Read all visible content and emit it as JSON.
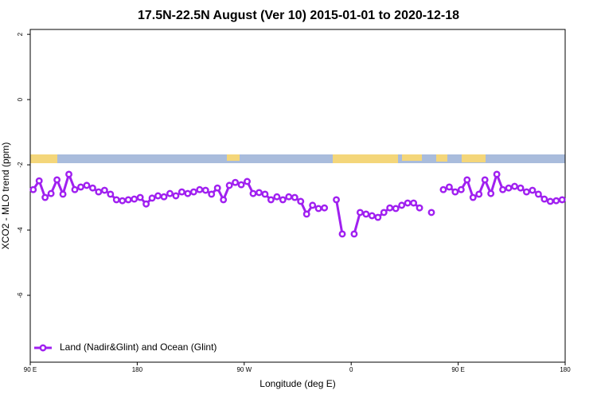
{
  "chart_data": {
    "type": "line",
    "title": "17.5N-22.5N August (Ver 10)   2015-01-01 to 2020-12-18",
    "x_label": "Longitude (deg E)",
    "y_label": "XCO2 - MLO trend (ppm)",
    "xlim": [
      90,
      540
    ],
    "xticks": [
      {
        "value": 90,
        "label": "90 E"
      },
      180,
      {
        "value": 270,
        "label": "90 W"
      },
      {
        "value": 360,
        "label": "0"
      },
      {
        "value": 450,
        "label": "90 E"
      },
      {
        "value": 540,
        "label": "180"
      }
    ],
    "ylim": [
      -8.05,
      2.15
    ],
    "yticks": [
      2,
      0,
      -2,
      -4,
      -6
    ],
    "grid": false,
    "legend": "bottom left",
    "x": [
      92.5,
      97.5,
      102.5,
      107.5,
      112.5,
      117.5,
      122.5,
      127.5,
      132.5,
      137.5,
      142.5,
      147.5,
      152.5,
      157.5,
      162.5,
      167.5,
      172.5,
      177.5,
      182.5,
      187.5,
      192.5,
      197.5,
      202.5,
      207.5,
      212.5,
      217.5,
      222.5,
      227.5,
      232.5,
      237.5,
      242.5,
      247.5,
      252.5,
      257.5,
      262.5,
      267.5,
      272.5,
      277.5,
      282.5,
      287.5,
      292.5,
      297.5,
      302.5,
      307.5,
      312.5,
      317.5,
      322.5,
      327.5,
      332.5,
      337.5,
      342.5,
      347.5,
      352.5,
      357.5,
      362.5,
      367.5,
      372.5,
      377.5,
      382.5,
      387.5,
      392.5,
      397.5,
      402.5,
      407.5,
      412.5,
      417.5,
      422.5,
      427.5,
      432.5,
      437.5,
      442.5,
      447.5,
      452.5,
      457.5,
      462.5,
      467.5,
      472.5,
      477.5,
      482.5,
      487.5,
      492.5,
      497.5,
      502.5,
      507.5,
      512.5,
      517.5,
      522.5,
      527.5,
      532.5,
      537.5
    ],
    "series": [
      {
        "name": "Land (Nadir&Glint) and Ocean (Glint)",
        "color": "#a020f0",
        "values": [
          -2.76,
          -2.49,
          -3.0,
          -2.88,
          -2.46,
          -2.9,
          -2.29,
          -2.76,
          -2.68,
          -2.63,
          -2.71,
          -2.83,
          -2.78,
          -2.9,
          -3.07,
          -3.1,
          -3.07,
          -3.05,
          -3.0,
          -3.2,
          -3.02,
          -2.95,
          -2.98,
          -2.88,
          -2.95,
          -2.83,
          -2.88,
          -2.83,
          -2.76,
          -2.78,
          -2.9,
          -2.71,
          -3.07,
          -2.63,
          -2.54,
          -2.61,
          -2.51,
          -2.88,
          -2.85,
          -2.9,
          -3.07,
          -2.98,
          -3.07,
          -2.98,
          -3.0,
          -3.12,
          -3.51,
          -3.24,
          -3.34,
          -3.32,
          null,
          -3.07,
          -4.12,
          null,
          -4.12,
          -3.46,
          -3.51,
          -3.56,
          -3.61,
          -3.46,
          -3.32,
          -3.34,
          -3.24,
          -3.17,
          -3.17,
          -3.32,
          null,
          -3.46,
          null,
          -2.76,
          -2.68,
          -2.83,
          -2.76,
          -2.46,
          -3.0,
          -2.9,
          -2.46,
          -2.88,
          -2.29,
          -2.76,
          -2.71,
          -2.66,
          -2.71,
          -2.83,
          -2.78,
          -2.9,
          -3.05,
          -3.12,
          -3.1,
          -3.07
        ]
      }
    ]
  }
}
